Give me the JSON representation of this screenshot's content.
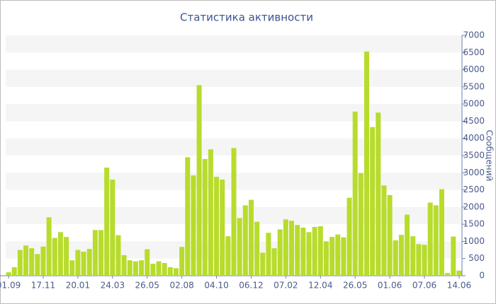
{
  "chart_data": {
    "type": "bar",
    "title": "Статистика активности",
    "y_label": "Сообщений",
    "categories": [
      "01.09",
      null,
      null,
      null,
      null,
      null,
      "17.11",
      null,
      null,
      null,
      null,
      null,
      "20.01",
      null,
      null,
      null,
      null,
      null,
      "24.03",
      null,
      null,
      null,
      null,
      null,
      "26.05",
      null,
      null,
      null,
      null,
      null,
      "02.08",
      null,
      null,
      null,
      null,
      null,
      "04.10",
      null,
      null,
      null,
      null,
      null,
      "06.12",
      null,
      null,
      null,
      null,
      null,
      "07.02",
      null,
      null,
      null,
      null,
      null,
      "12.04",
      null,
      null,
      null,
      null,
      null,
      "26.05",
      null,
      null,
      null,
      null,
      null,
      "01.06",
      null,
      null,
      null,
      null,
      null,
      "07.06",
      null,
      null,
      null,
      null,
      null,
      "14.06"
    ],
    "values": [
      100,
      250,
      750,
      880,
      800,
      630,
      850,
      1700,
      1100,
      1270,
      1130,
      450,
      750,
      700,
      780,
      1330,
      1330,
      3150,
      2800,
      1180,
      600,
      450,
      420,
      450,
      770,
      350,
      420,
      370,
      250,
      220,
      840,
      3450,
      2920,
      5550,
      3400,
      3680,
      2880,
      2800,
      1150,
      3720,
      1680,
      2050,
      2210,
      1570,
      670,
      1250,
      800,
      1350,
      1640,
      1600,
      1480,
      1400,
      1270,
      1420,
      1440,
      1000,
      1130,
      1200,
      1120,
      2270,
      4780,
      2990,
      6530,
      4330,
      4750,
      2630,
      2350,
      1030,
      1190,
      1780,
      1150,
      920,
      900,
      2130,
      2050,
      2520,
      80,
      1140,
      150
    ],
    "color": "#b7dc2c",
    "ylim": [
      0,
      7000
    ],
    "yticks": [
      0,
      500,
      1000,
      1500,
      2000,
      2500,
      3000,
      3500,
      4000,
      4500,
      5000,
      5500,
      6000,
      6500,
      7000
    ],
    "grid": true
  }
}
